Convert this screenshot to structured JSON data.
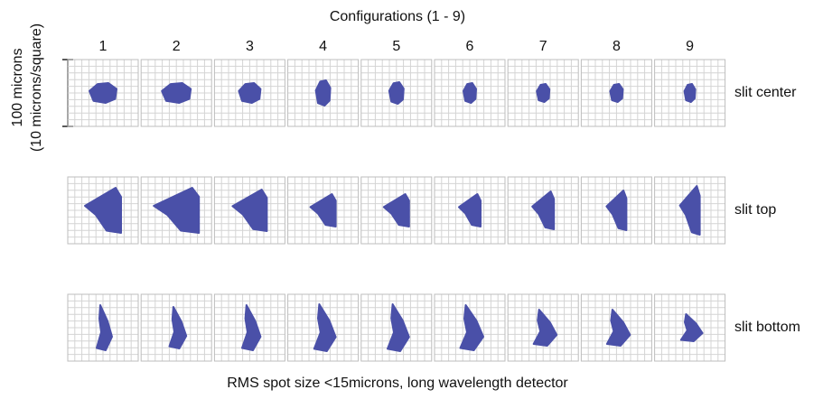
{
  "title": "Configurations (1 - 9)",
  "columns": [
    "1",
    "2",
    "3",
    "4",
    "5",
    "6",
    "7",
    "8",
    "9"
  ],
  "rows": [
    "slit center",
    "slit top",
    "slit bottom"
  ],
  "y_label": [
    "100 microns",
    "(10 microns/square)"
  ],
  "caption": "RMS spot size <15microns, long wavelength detector"
}
